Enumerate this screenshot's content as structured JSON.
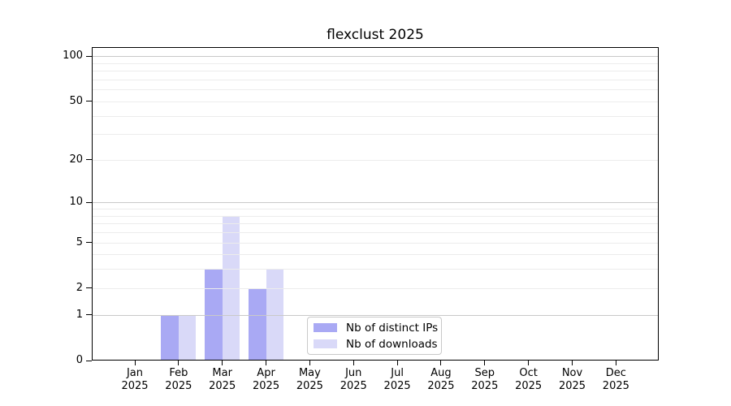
{
  "chart_data": {
    "type": "bar",
    "title": "flexclust 2025",
    "x_categories": [
      "Jan",
      "Feb",
      "Mar",
      "Apr",
      "May",
      "Jun",
      "Jul",
      "Aug",
      "Sep",
      "Oct",
      "Nov",
      "Dec"
    ],
    "x_year": "2025",
    "series": [
      {
        "name": "Nb of distinct IPs",
        "color": "#a9a9f4",
        "values": [
          0,
          1,
          3,
          2,
          0,
          0,
          0,
          0,
          0,
          0,
          0,
          0
        ]
      },
      {
        "name": "Nb of downloads",
        "color": "#d9d9f8",
        "values": [
          0,
          1,
          8,
          3,
          0,
          0,
          0,
          0,
          0,
          0,
          0,
          0
        ]
      }
    ],
    "y_scale": "log10(1+x)",
    "y_ticks": [
      100,
      50,
      20,
      10,
      5,
      2,
      1,
      0
    ],
    "y_gridlines_major": [
      1,
      10,
      100
    ],
    "y_gridlines_minor": [
      2,
      3,
      4,
      5,
      6,
      7,
      8,
      9,
      20,
      30,
      40,
      50,
      60,
      70,
      80,
      90
    ],
    "ylim": [
      0,
      115
    ],
    "grid": "horizontal",
    "legend_position": "inside lower center",
    "colors": {
      "axis": "#000000",
      "grid_major": "#c9c9c9",
      "grid_minor": "#ececec",
      "legend_border": "#c9c9c9"
    }
  }
}
